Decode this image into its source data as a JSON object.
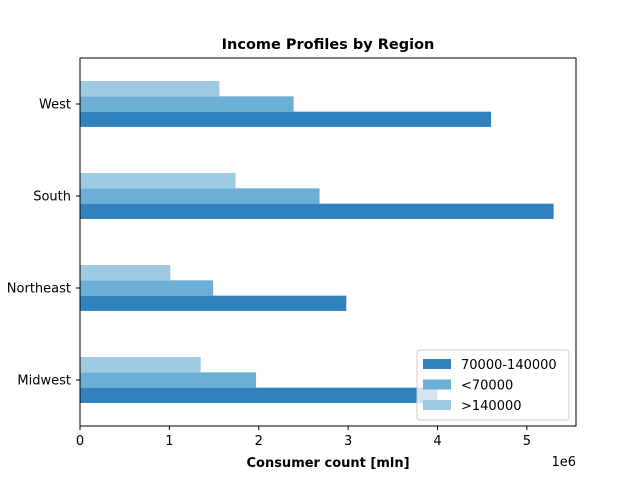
{
  "chart_data": {
    "type": "bar",
    "orientation": "horizontal",
    "title": "Income Profiles by Region",
    "xlabel": "Consumer count [mln]",
    "ylabel": "",
    "x_offset_text": "1e6",
    "categories": [
      "Midwest",
      "Northeast",
      "South",
      "West"
    ],
    "xlim": [
      0,
      5550000
    ],
    "xticks": [
      0,
      1000000,
      2000000,
      3000000,
      4000000,
      5000000
    ],
    "xtick_labels": [
      "0",
      "1",
      "2",
      "3",
      "4",
      "5"
    ],
    "series": [
      {
        "name": "70000-140000",
        "color": "#3182bd",
        "values": [
          4000000,
          2980000,
          5300000,
          4600000
        ]
      },
      {
        "name": "<70000",
        "color": "#6baed6",
        "values": [
          1970000,
          1490000,
          2680000,
          2390000
        ]
      },
      {
        "name": ">140000",
        "color": "#9ecae1",
        "values": [
          1350000,
          1010000,
          1740000,
          1560000
        ]
      }
    ],
    "legend_position": "lower-right",
    "grid": false
  }
}
